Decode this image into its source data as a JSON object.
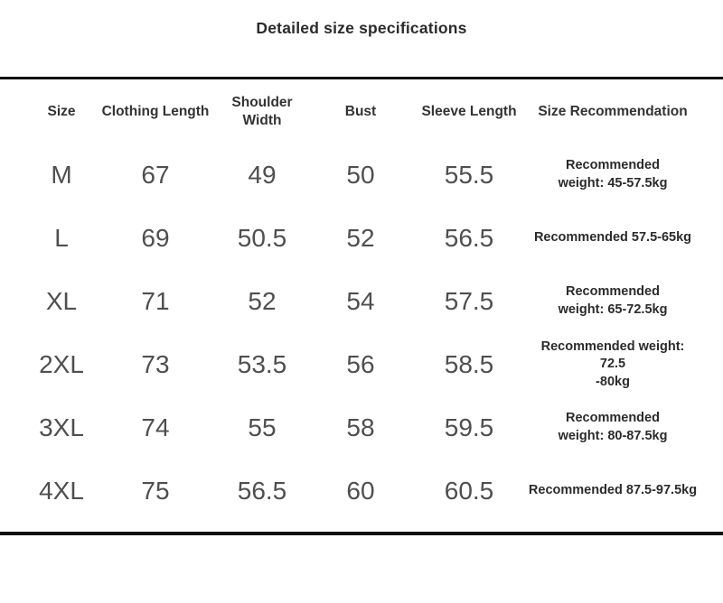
{
  "title": "Detailed size specifications",
  "colors": {
    "background": "#ffffff",
    "rule": "#0d0d0d",
    "title_text": "#2b2b2b",
    "header_text": "#333333",
    "value_text": "#4f4f4f",
    "recommendation_text": "#2b2b2b"
  },
  "table": {
    "headers": [
      "Size",
      "Clothing Length",
      "Shoulder Width",
      "Bust",
      "Sleeve Length",
      "Size Recommendation"
    ],
    "rows": [
      {
        "size": "M",
        "clothing_length": "67",
        "shoulder_width": "49",
        "bust": "50",
        "sleeve_length": "55.5",
        "recommendation": "Recommended\nweight: 45-57.5kg"
      },
      {
        "size": "L",
        "clothing_length": "69",
        "shoulder_width": "50.5",
        "bust": "52",
        "sleeve_length": "56.5",
        "recommendation": "Recommended 57.5-65kg"
      },
      {
        "size": "XL",
        "clothing_length": "71",
        "shoulder_width": "52",
        "bust": "54",
        "sleeve_length": "57.5",
        "recommendation": "Recommended\nweight: 65-72.5kg"
      },
      {
        "size": "2XL",
        "clothing_length": "73",
        "shoulder_width": "53.5",
        "bust": "56",
        "sleeve_length": "58.5",
        "recommendation": "Recommended weight: 72.5\n-80kg"
      },
      {
        "size": "3XL",
        "clothing_length": "74",
        "shoulder_width": "55",
        "bust": "58",
        "sleeve_length": "59.5",
        "recommendation": "Recommended\nweight: 80-87.5kg"
      },
      {
        "size": "4XL",
        "clothing_length": "75",
        "shoulder_width": "56.5",
        "bust": "60",
        "sleeve_length": "60.5",
        "recommendation": "Recommended 87.5-97.5kg"
      }
    ]
  }
}
